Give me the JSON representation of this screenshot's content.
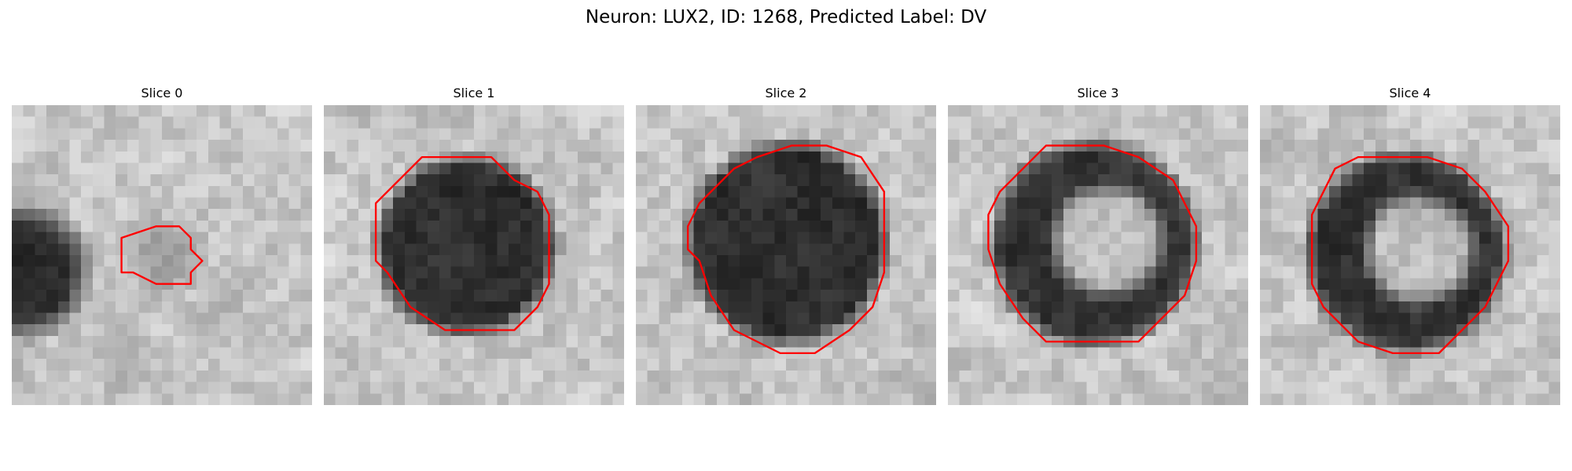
{
  "figure": {
    "title": "Neuron: LUX2, ID: 1268, Predicted Label: DV",
    "colors": {
      "contour": "#ff0000",
      "background": "#ffffff"
    },
    "grid_size": 26
  },
  "panels": [
    {
      "title": "Slice 0",
      "cell": "small-blob",
      "contour": [
        [
          9.5,
          11.5
        ],
        [
          12.5,
          10.5
        ],
        [
          14.5,
          10.5
        ],
        [
          15.5,
          11.5
        ],
        [
          15.5,
          12.5
        ],
        [
          16.5,
          13.5
        ],
        [
          15.5,
          14.5
        ],
        [
          15.5,
          15.5
        ],
        [
          12.5,
          15.5
        ],
        [
          10.5,
          14.5
        ],
        [
          9.5,
          14.5
        ],
        [
          9.5,
          12.5
        ]
      ]
    },
    {
      "title": "Slice 1",
      "cell": "dark-disc",
      "contour": [
        [
          6.5,
          6.5
        ],
        [
          8.5,
          4.5
        ],
        [
          14.5,
          4.5
        ],
        [
          16.5,
          6.5
        ],
        [
          18.5,
          7.5
        ],
        [
          19.5,
          9.5
        ],
        [
          19.5,
          12.5
        ],
        [
          19.5,
          15.5
        ],
        [
          18.5,
          17.5
        ],
        [
          16.5,
          19.5
        ],
        [
          14.5,
          19.5
        ],
        [
          10.5,
          19.5
        ],
        [
          7.5,
          17.5
        ],
        [
          5.5,
          14.5
        ],
        [
          4.5,
          13.5
        ],
        [
          4.5,
          10.5
        ],
        [
          4.5,
          8.5
        ]
      ]
    },
    {
      "title": "Slice 2",
      "cell": "dark-disc",
      "contour": [
        [
          8.5,
          5.5
        ],
        [
          10.5,
          4.5
        ],
        [
          13.5,
          3.5
        ],
        [
          16.5,
          3.5
        ],
        [
          19.5,
          4.5
        ],
        [
          21.5,
          7.5
        ],
        [
          21.5,
          10.5
        ],
        [
          21.5,
          14.5
        ],
        [
          20.5,
          17.5
        ],
        [
          18.5,
          19.5
        ],
        [
          15.5,
          21.5
        ],
        [
          12.5,
          21.5
        ],
        [
          8.5,
          19.5
        ],
        [
          6.5,
          16.5
        ],
        [
          5.5,
          13.5
        ],
        [
          4.5,
          12.5
        ],
        [
          4.5,
          10.5
        ],
        [
          5.5,
          8.5
        ]
      ]
    },
    {
      "title": "Slice 3",
      "cell": "ring",
      "contour": [
        [
          6.5,
          5.5
        ],
        [
          8.5,
          3.5
        ],
        [
          13.5,
          3.5
        ],
        [
          16.5,
          4.5
        ],
        [
          19.5,
          6.5
        ],
        [
          20.5,
          8.5
        ],
        [
          21.5,
          10.5
        ],
        [
          21.5,
          13.5
        ],
        [
          20.5,
          16.5
        ],
        [
          18.5,
          18.5
        ],
        [
          16.5,
          20.5
        ],
        [
          13.5,
          20.5
        ],
        [
          8.5,
          20.5
        ],
        [
          6.5,
          18.5
        ],
        [
          4.5,
          15.5
        ],
        [
          3.5,
          12.5
        ],
        [
          3.5,
          9.5
        ],
        [
          4.5,
          7.5
        ]
      ]
    },
    {
      "title": "Slice 4",
      "cell": "ring",
      "contour": [
        [
          6.5,
          5.5
        ],
        [
          8.5,
          4.5
        ],
        [
          14.5,
          4.5
        ],
        [
          17.5,
          5.5
        ],
        [
          19.5,
          7.5
        ],
        [
          21.5,
          10.5
        ],
        [
          21.5,
          13.5
        ],
        [
          20.5,
          15.5
        ],
        [
          19.5,
          17.5
        ],
        [
          17.5,
          19.5
        ],
        [
          15.5,
          21.5
        ],
        [
          11.5,
          21.5
        ],
        [
          8.5,
          20.5
        ],
        [
          5.5,
          17.5
        ],
        [
          4.5,
          15.5
        ],
        [
          4.5,
          12.5
        ],
        [
          4.5,
          9.5
        ],
        [
          5.5,
          7.5
        ]
      ]
    }
  ]
}
